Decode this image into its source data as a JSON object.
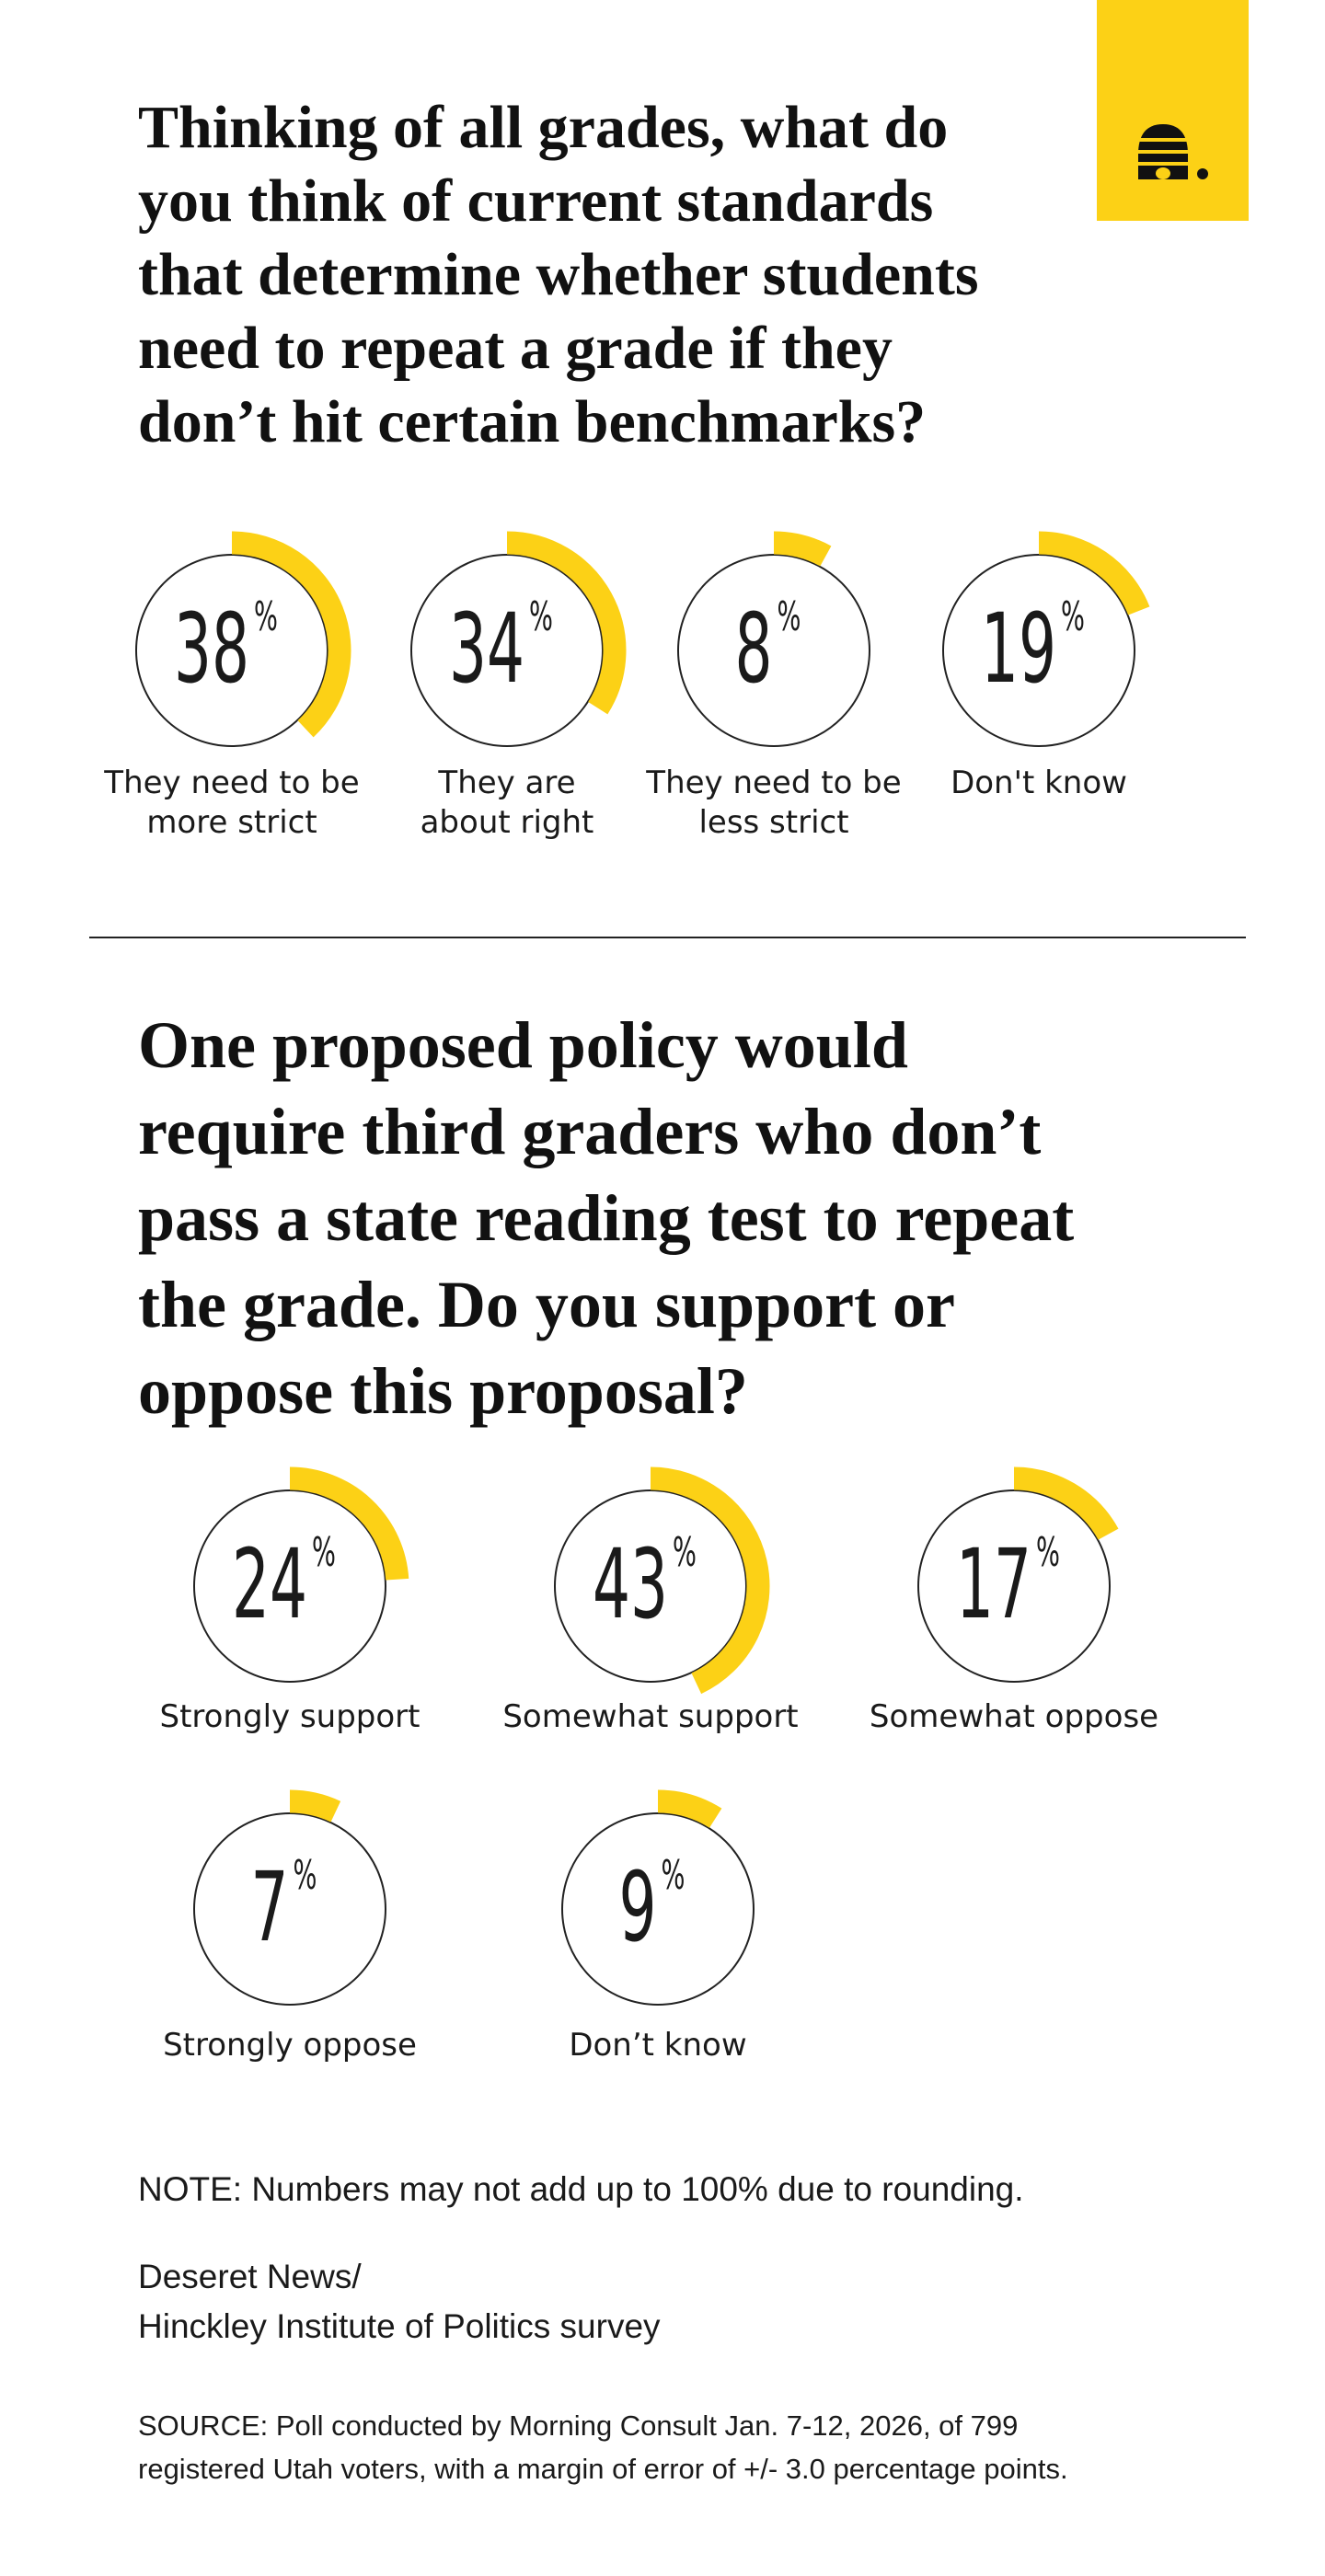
{
  "header": {
    "title": "Thinking of all grades, what do\nyou think of current standards\nthat determine whether students\nneed to repeat a grade if they\ndon’t hit certain benchmarks?"
  },
  "chart_data": [
    {
      "type": "radial",
      "unit": "%",
      "color": "#fcd116",
      "categories": [
        "They need to be\nmore strict",
        "They are\nabout right",
        "They need to be\nless strict",
        "Don't know"
      ],
      "values": [
        38,
        34,
        8,
        19
      ]
    },
    {
      "type": "radial",
      "unit": "%",
      "color": "#fcd116",
      "title": "One proposed policy would\nrequire third graders who don’t\npass a state reading test to repeat\nthe grade. Do you support or\noppose this proposal?",
      "categories": [
        "Strongly support",
        "Somewhat support",
        "Somewhat oppose",
        "Strongly oppose",
        "Don’t know"
      ],
      "values": [
        24,
        43,
        17,
        7,
        9
      ]
    }
  ],
  "footer": {
    "note": "NOTE: Numbers may not add up to 100% due to rounding.",
    "credit": "Deseret News/\nHinckley Institute of Politics survey",
    "source": "SOURCE: Poll conducted by Morning Consult Jan. 7-12, 2026, of 799\nregistered Utah voters, with a margin of error of +/- 3.0 percentage points."
  }
}
